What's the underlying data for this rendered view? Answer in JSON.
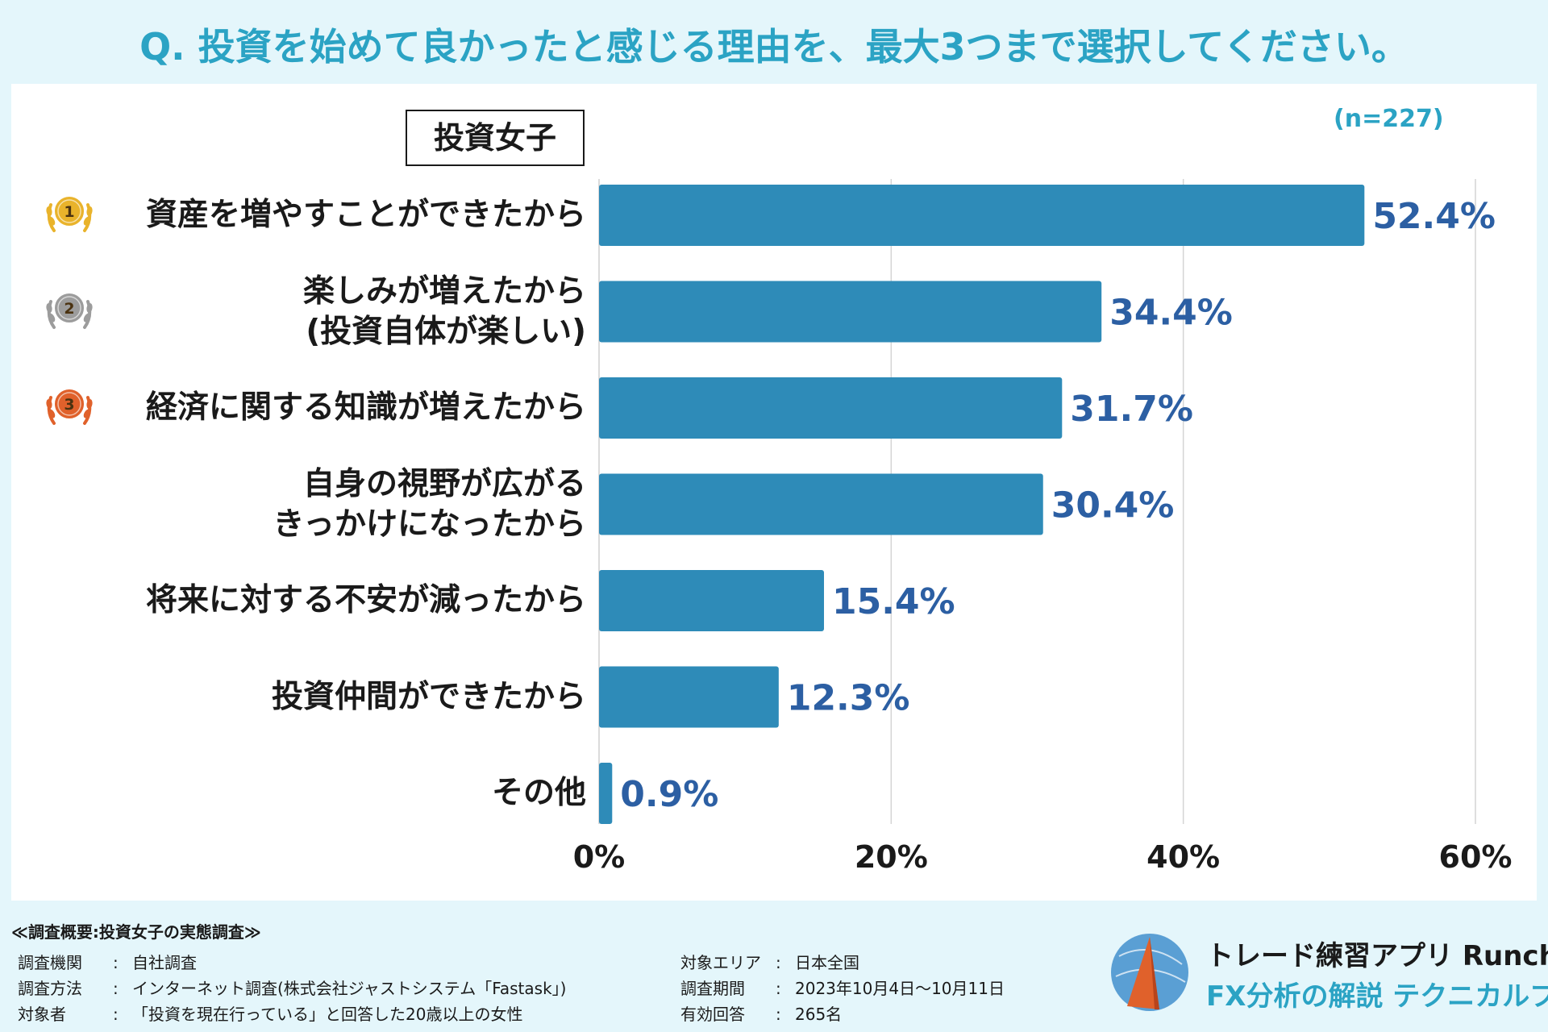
{
  "question": "Q. 投資を始めて良かったと感じる理由を、最大3つまで選択してください。",
  "segment": "投資女子",
  "sample_size": "(n=227)",
  "chart_data": {
    "type": "bar",
    "orientation": "horizontal",
    "title": "Q. 投資を始めて良かったと感じる理由を、最大3つまで選択してください。",
    "categories": [
      [
        "資産を増やすことができたから"
      ],
      [
        "楽しみが増えたから",
        "(投資自体が楽しい)"
      ],
      [
        "経済に関する知識が増えたから"
      ],
      [
        "自身の視野が広がる",
        "きっかけになったから"
      ],
      [
        "将来に対する不安が減ったから"
      ],
      [
        "投資仲間ができたから"
      ],
      [
        "その他"
      ]
    ],
    "values": [
      52.4,
      34.4,
      31.7,
      30.4,
      15.4,
      12.3,
      0.9
    ],
    "value_labels": [
      "52.4%",
      "34.4%",
      "31.7%",
      "30.4%",
      "15.4%",
      "12.3%",
      "0.9%"
    ],
    "xlim": [
      0,
      60
    ],
    "ticks": [
      0,
      20,
      40,
      60
    ],
    "tick_labels": [
      "0%",
      "20%",
      "40%",
      "60%"
    ],
    "ranks": [
      1,
      2,
      3,
      null,
      null,
      null,
      null
    ],
    "grid": true,
    "bar_color": "#2e8bb8",
    "label_color": "#2c5fa3",
    "medal_colors": [
      "#e9b32b",
      "#9c9c9c",
      "#e0612b"
    ]
  },
  "survey": {
    "heading": "≪調査概要:投資女子の実態調査≫",
    "left": [
      {
        "key": "調査機関",
        "value": "自社調査"
      },
      {
        "key": "調査方法",
        "value": "インターネット調査(株式会社ジャストシステム「Fastask」)"
      },
      {
        "key": "対象者",
        "value": "「投資を現在行っている」と回答した20歳以上の女性"
      }
    ],
    "right": [
      {
        "key": "対象エリア",
        "value": "日本全国"
      },
      {
        "key": "調査期間",
        "value": "2023年10月4日〜10月11日"
      },
      {
        "key": "有効回答",
        "value": "265名"
      }
    ],
    "separator": ":"
  },
  "brand": {
    "line1": "トレード練習アプリ Runcha",
    "line2": "FX分析の解説 テクニカルブック"
  },
  "colors": {
    "background": "#e4f6fb",
    "accent": "#2ba3c4",
    "logo_orange": "#e0612b",
    "logo_blue": "#5a9fd4"
  }
}
